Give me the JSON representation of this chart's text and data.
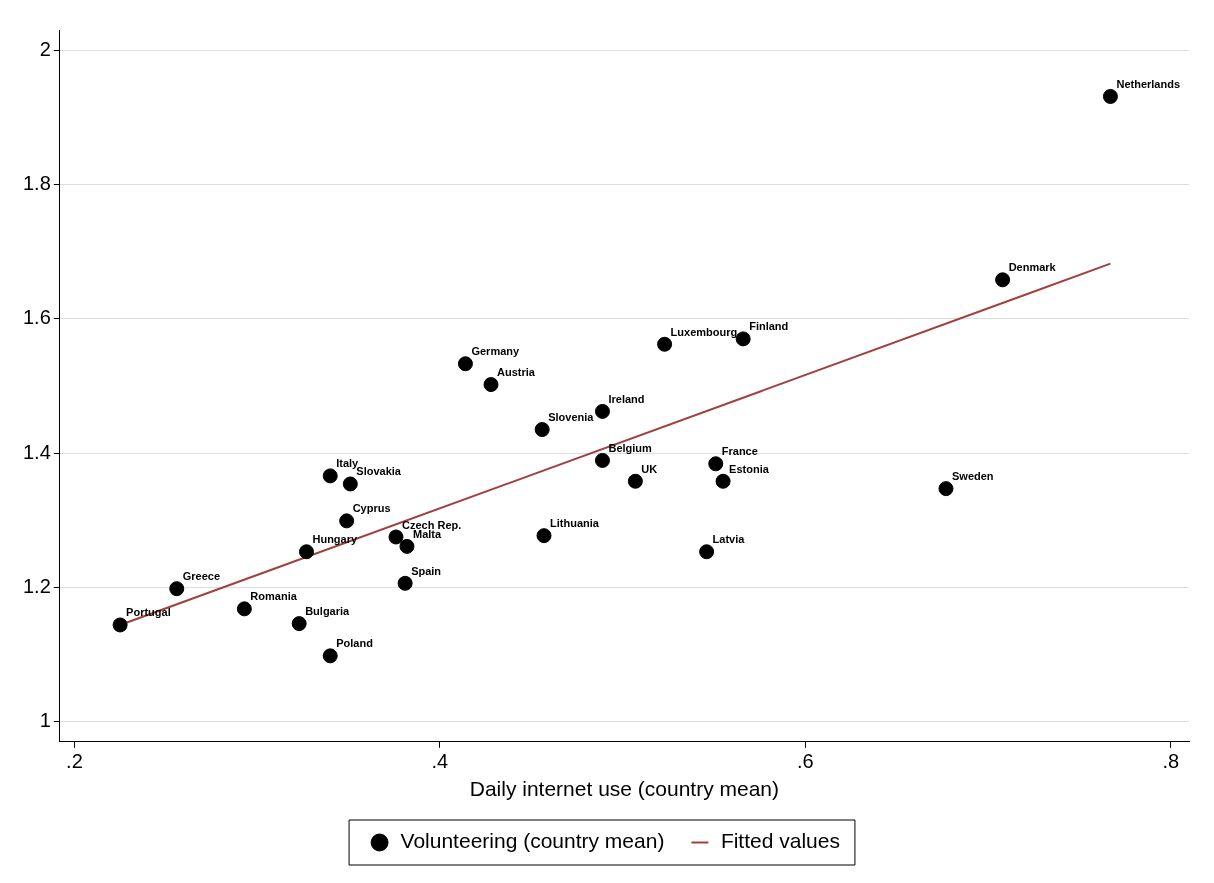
{
  "chart_data": {
    "type": "scatter",
    "xlabel": "Daily internet use (country mean)",
    "xlim": [
      0.192,
      0.81
    ],
    "ylim": [
      0.97,
      2.03
    ],
    "xticks": [
      {
        "value": 0.2,
        "label": ".2"
      },
      {
        "value": 0.4,
        "label": ".4"
      },
      {
        "value": 0.6,
        "label": ".6"
      },
      {
        "value": 0.8,
        "label": ".8"
      }
    ],
    "yticks": [
      1,
      1.2,
      1.4,
      1.6,
      1.8,
      2
    ],
    "grid": "y",
    "legend": "bottom",
    "series": [
      {
        "name": "Volunteering (country mean)",
        "color": "#000000",
        "type": "scatter",
        "marker": "circle",
        "x": [
          0.225,
          0.256,
          0.293,
          0.323,
          0.34,
          0.327,
          0.34,
          0.351,
          0.349,
          0.376,
          0.382,
          0.381,
          0.414,
          0.428,
          0.456,
          0.457,
          0.489,
          0.489,
          0.507,
          0.523,
          0.566,
          0.551,
          0.555,
          0.546,
          0.677,
          0.708,
          0.767
        ],
        "values": [
          1.144,
          1.198,
          1.168,
          1.146,
          1.098,
          1.253,
          1.366,
          1.354,
          1.299,
          1.275,
          1.261,
          1.206,
          1.533,
          1.502,
          1.435,
          1.277,
          1.462,
          1.389,
          1.358,
          1.562,
          1.57,
          1.384,
          1.358,
          1.253,
          1.347,
          1.658,
          1.931
        ]
      },
      {
        "name": "Fitted values",
        "color": "#a04040",
        "type": "line",
        "marker": "none",
        "x": [
          0.225,
          0.767
        ],
        "values": [
          1.144,
          1.682
        ]
      }
    ],
    "annotations": [
      {
        "text": "Portugal",
        "x": 0.225,
        "y": 1.144
      },
      {
        "text": "Greece",
        "x": 0.256,
        "y": 1.198
      },
      {
        "text": "Romania",
        "x": 0.293,
        "y": 1.168
      },
      {
        "text": "Bulgaria",
        "x": 0.323,
        "y": 1.146
      },
      {
        "text": "Poland",
        "x": 0.34,
        "y": 1.098
      },
      {
        "text": "Hungary",
        "x": 0.327,
        "y": 1.253
      },
      {
        "text": "Italy",
        "x": 0.34,
        "y": 1.366
      },
      {
        "text": "Slovakia",
        "x": 0.351,
        "y": 1.354
      },
      {
        "text": "Cyprus",
        "x": 0.349,
        "y": 1.299
      },
      {
        "text": "Czech Rep.",
        "x": 0.376,
        "y": 1.275
      },
      {
        "text": "Malta",
        "x": 0.382,
        "y": 1.261
      },
      {
        "text": "Spain",
        "x": 0.381,
        "y": 1.206
      },
      {
        "text": "Germany",
        "x": 0.414,
        "y": 1.533
      },
      {
        "text": "Austria",
        "x": 0.428,
        "y": 1.502
      },
      {
        "text": "Slovenia",
        "x": 0.456,
        "y": 1.435
      },
      {
        "text": "Lithuania",
        "x": 0.457,
        "y": 1.277
      },
      {
        "text": "Ireland",
        "x": 0.489,
        "y": 1.462
      },
      {
        "text": "Belgium",
        "x": 0.489,
        "y": 1.389
      },
      {
        "text": "UK",
        "x": 0.507,
        "y": 1.358
      },
      {
        "text": "Luxembourg",
        "x": 0.523,
        "y": 1.562
      },
      {
        "text": "Finland",
        "x": 0.566,
        "y": 1.57
      },
      {
        "text": "France",
        "x": 0.551,
        "y": 1.384
      },
      {
        "text": "Estonia",
        "x": 0.555,
        "y": 1.358
      },
      {
        "text": "Latvia",
        "x": 0.546,
        "y": 1.253
      },
      {
        "text": "Sweden",
        "x": 0.677,
        "y": 1.347
      },
      {
        "text": "Denmark",
        "x": 0.708,
        "y": 1.658
      },
      {
        "text": "Netherlands",
        "x": 0.767,
        "y": 1.931
      }
    ]
  }
}
